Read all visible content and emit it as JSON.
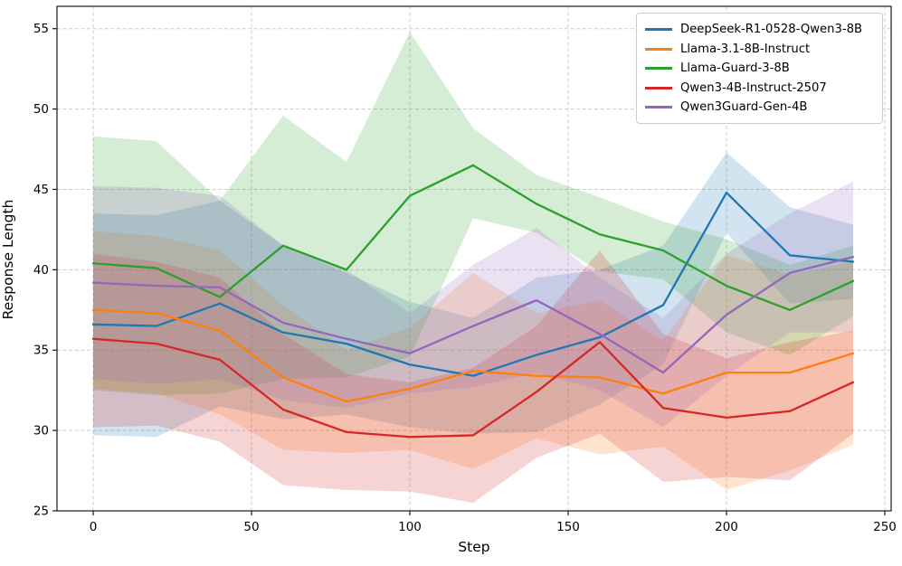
{
  "chart_data": {
    "type": "line",
    "title": "",
    "xlabel": "Step",
    "ylabel": "Response Length",
    "x": [
      0,
      20,
      40,
      60,
      80,
      100,
      120,
      140,
      160,
      180,
      200,
      220,
      240
    ],
    "xticks": [
      0,
      50,
      100,
      150,
      200,
      250
    ],
    "yticks": [
      25,
      30,
      35,
      40,
      45,
      50,
      55
    ],
    "xlim": [
      -11.4,
      252
    ],
    "ylim": [
      25,
      56.4
    ],
    "grid": true,
    "grid_style": "dashed",
    "legend_position": "upper right",
    "band_alpha": 0.2,
    "series": [
      {
        "name": "DeepSeek-R1-0528-Qwen3-8B",
        "color": "#1f77b4",
        "values": [
          36.6,
          36.5,
          37.9,
          36.1,
          35.4,
          34.1,
          33.4,
          34.7,
          35.8,
          37.8,
          44.8,
          40.9,
          40.5
        ],
        "band_upper": [
          43.5,
          43.4,
          44.3,
          41.5,
          39.8,
          38.0,
          37.0,
          39.5,
          40.0,
          41.5,
          47.3,
          43.9,
          42.8
        ],
        "band_lower": [
          29.7,
          29.6,
          31.5,
          30.7,
          31.0,
          30.2,
          29.8,
          29.9,
          31.6,
          34.1,
          42.3,
          37.9,
          38.2
        ]
      },
      {
        "name": "Llama-3.1-8B-Instruct",
        "color": "#ff7f0e",
        "values": [
          37.5,
          37.3,
          36.2,
          33.3,
          31.8,
          32.6,
          33.7,
          33.4,
          33.3,
          32.3,
          33.6,
          33.6,
          34.8
        ],
        "band_upper": [
          42.4,
          42.1,
          41.2,
          37.8,
          35.0,
          36.4,
          39.8,
          37.3,
          38.1,
          35.6,
          40.9,
          39.7,
          40.5
        ],
        "band_lower": [
          32.6,
          32.3,
          31.0,
          28.8,
          28.6,
          28.8,
          27.6,
          29.5,
          28.5,
          29.0,
          26.3,
          27.5,
          29.1
        ]
      },
      {
        "name": "Llama-Guard-3-8B",
        "color": "#2ca02c",
        "values": [
          40.4,
          40.1,
          38.3,
          41.5,
          40.0,
          44.6,
          46.5,
          44.1,
          42.2,
          41.2,
          39.0,
          37.5,
          39.3
        ],
        "band_upper": [
          48.3,
          48.0,
          44.3,
          49.6,
          46.7,
          54.8,
          48.8,
          45.9,
          44.5,
          43.0,
          41.9,
          40.3,
          41.5
        ],
        "band_lower": [
          32.5,
          32.2,
          32.3,
          33.2,
          33.3,
          34.6,
          43.2,
          42.3,
          39.9,
          39.4,
          36.1,
          34.7,
          37.1
        ]
      },
      {
        "name": "Qwen3-4B-Instruct-2507",
        "color": "#d62728",
        "values": [
          35.7,
          35.4,
          34.4,
          31.3,
          29.9,
          29.6,
          29.7,
          32.4,
          35.5,
          31.4,
          30.8,
          31.2,
          33.0
        ],
        "band_upper": [
          41.0,
          40.5,
          39.5,
          36.0,
          33.5,
          33.0,
          33.9,
          36.5,
          41.2,
          36.0,
          34.5,
          35.5,
          36.2
        ],
        "band_lower": [
          30.2,
          30.3,
          29.3,
          26.6,
          26.3,
          26.2,
          25.5,
          28.3,
          29.8,
          26.8,
          27.1,
          26.9,
          29.8
        ]
      },
      {
        "name": "Qwen3Guard-Gen-4B",
        "color": "#9467bd",
        "values": [
          39.2,
          39.0,
          38.9,
          36.7,
          35.7,
          34.8,
          36.5,
          38.1,
          36.0,
          33.6,
          37.2,
          39.8,
          40.8
        ],
        "band_upper": [
          45.2,
          45.1,
          44.6,
          41.5,
          40.0,
          37.3,
          40.3,
          42.6,
          39.5,
          37.0,
          41.0,
          43.5,
          45.5
        ],
        "band_lower": [
          33.2,
          32.9,
          33.2,
          31.9,
          31.4,
          32.3,
          32.7,
          33.6,
          32.5,
          30.2,
          33.4,
          36.1,
          36.1
        ]
      }
    ]
  }
}
